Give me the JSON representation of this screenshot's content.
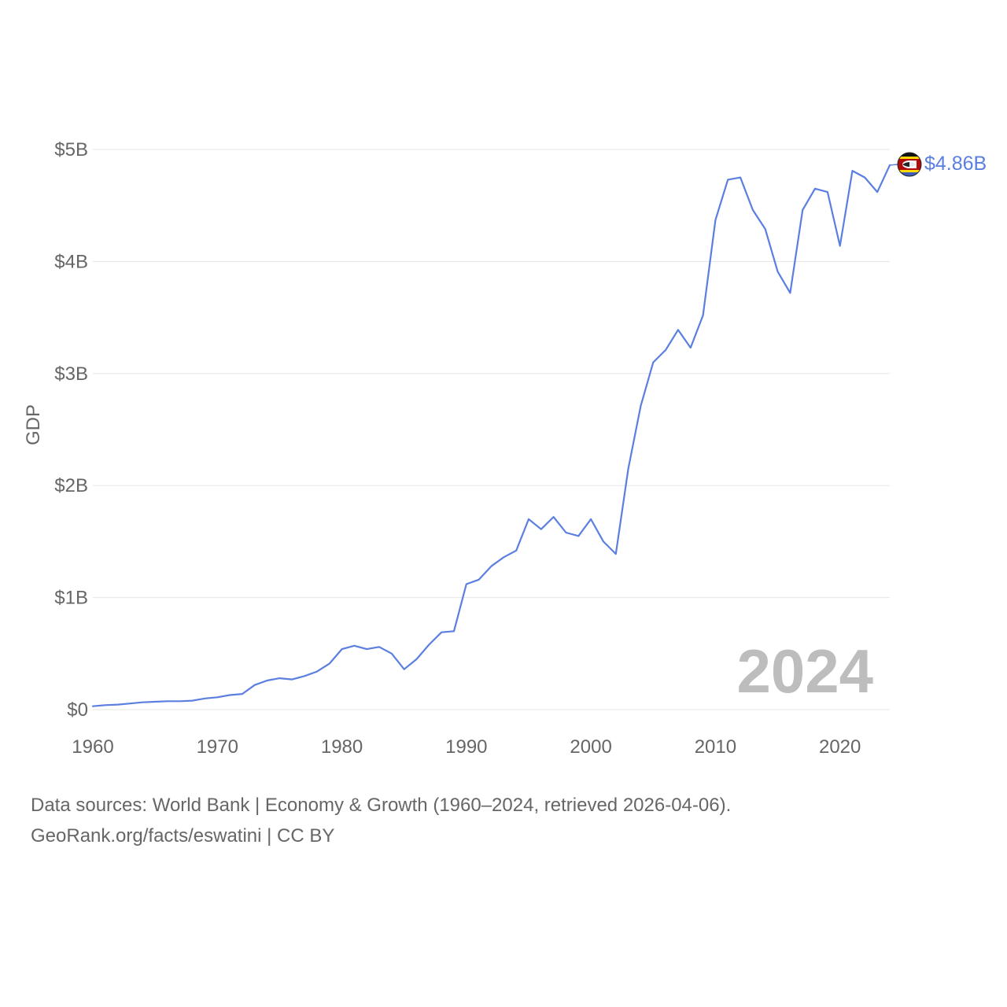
{
  "chart_data": {
    "type": "line",
    "title": "",
    "xlabel": "",
    "ylabel": "GDP",
    "xlim": [
      1960,
      2024
    ],
    "ylim": [
      0,
      5
    ],
    "unit": "billion USD",
    "x_ticks": [
      1960,
      1970,
      1980,
      1990,
      2000,
      2010,
      2020
    ],
    "x_tick_labels": [
      "1960",
      "1970",
      "1980",
      "1990",
      "2000",
      "2010",
      "2020"
    ],
    "y_ticks": [
      0,
      1,
      2,
      3,
      4,
      5
    ],
    "y_tick_labels": [
      "$0",
      "$1B",
      "$2B",
      "$3B",
      "$4B",
      "$5B"
    ],
    "grid": true,
    "series": [
      {
        "name": "Eswatini",
        "color": "#5b7fe0",
        "x": [
          1960,
          1961,
          1962,
          1963,
          1964,
          1965,
          1966,
          1967,
          1968,
          1969,
          1970,
          1971,
          1972,
          1973,
          1974,
          1975,
          1976,
          1977,
          1978,
          1979,
          1980,
          1981,
          1982,
          1983,
          1984,
          1985,
          1986,
          1987,
          1988,
          1989,
          1990,
          1991,
          1992,
          1993,
          1994,
          1995,
          1996,
          1997,
          1998,
          1999,
          2000,
          2001,
          2002,
          2003,
          2004,
          2005,
          2006,
          2007,
          2008,
          2009,
          2010,
          2011,
          2012,
          2013,
          2014,
          2015,
          2016,
          2017,
          2018,
          2019,
          2020,
          2021,
          2022,
          2023,
          2024
        ],
        "values": [
          0.03,
          0.04,
          0.045,
          0.055,
          0.065,
          0.07,
          0.075,
          0.075,
          0.08,
          0.1,
          0.11,
          0.13,
          0.14,
          0.22,
          0.26,
          0.28,
          0.27,
          0.3,
          0.34,
          0.41,
          0.54,
          0.57,
          0.54,
          0.56,
          0.5,
          0.36,
          0.45,
          0.58,
          0.69,
          0.7,
          1.12,
          1.16,
          1.28,
          1.36,
          1.42,
          1.7,
          1.61,
          1.72,
          1.58,
          1.55,
          1.7,
          1.5,
          1.39,
          2.15,
          2.71,
          3.1,
          3.21,
          3.39,
          3.23,
          3.52,
          4.37,
          4.73,
          4.75,
          4.46,
          4.29,
          3.91,
          3.72,
          4.46,
          4.65,
          4.62,
          4.14,
          4.81,
          4.75,
          4.62,
          4.86
        ]
      }
    ],
    "end_label": "$4.86B",
    "year_label": "2024"
  },
  "footer": {
    "line1": "Data sources: World Bank | Economy & Growth (1960–2024, retrieved 2026-04-06).",
    "line2": "GeoRank.org/facts/eswatini | CC BY"
  },
  "colors": {
    "line": "#5b7fe0",
    "grid": "#e6e6e6",
    "text": "#666666",
    "watermark": "#bdbdbd"
  }
}
